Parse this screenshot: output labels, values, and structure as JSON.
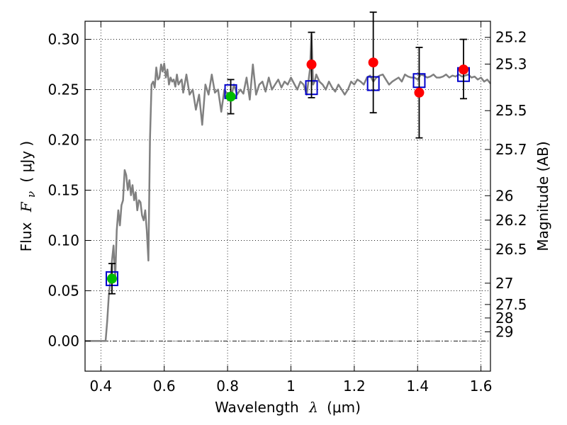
{
  "chart_data": {
    "type": "scatter",
    "xlabel_text": "Wavelength",
    "xlabel_symbol": "λ",
    "xlabel_unit": "(μm)",
    "ylabel_text": "Flux",
    "ylabel_symbol": "F",
    "ylabel_subscript": "ν",
    "ylabel_unit": "( μJy )",
    "y2label": "Magnitude (AB)",
    "xlim": [
      0.35,
      1.63
    ],
    "ylim": [
      -0.03,
      0.318
    ],
    "grid": true,
    "x_ticks": [
      0.4,
      0.6,
      0.8,
      1.0,
      1.2,
      1.4,
      1.6
    ],
    "x_tick_labels": [
      "0.4",
      "0.6",
      "0.8",
      "1",
      "1.2",
      "1.4",
      "1.6"
    ],
    "y_ticks": [
      0.0,
      0.05,
      0.1,
      0.15,
      0.2,
      0.25,
      0.3
    ],
    "y_tick_labels": [
      "0.00",
      "0.05",
      "0.10",
      "0.15",
      "0.20",
      "0.25",
      "0.30"
    ],
    "y2_ticks": [
      {
        "label": "25.2",
        "flux": 0.302
      },
      {
        "label": "25.3",
        "flux": 0.2754
      },
      {
        "label": "25.5",
        "flux": 0.2291
      },
      {
        "label": "25.7",
        "flux": 0.1905
      },
      {
        "label": "26",
        "flux": 0.1445
      },
      {
        "label": "26.2",
        "flux": 0.1202
      },
      {
        "label": "26.5",
        "flux": 0.0912
      },
      {
        "label": "27",
        "flux": 0.0575
      },
      {
        "label": "27.5",
        "flux": 0.0363
      },
      {
        "label": "28",
        "flux": 0.0229
      },
      {
        "label": "29",
        "flux": 0.0091
      }
    ],
    "series": [
      {
        "kind": "line",
        "color": "#808080",
        "x": [
          0.35,
          0.41,
          0.415,
          0.42,
          0.425,
          0.43,
          0.435,
          0.44,
          0.445,
          0.45,
          0.455,
          0.46,
          0.465,
          0.47,
          0.475,
          0.48,
          0.485,
          0.49,
          0.495,
          0.5,
          0.505,
          0.51,
          0.515,
          0.52,
          0.525,
          0.53,
          0.535,
          0.54,
          0.545,
          0.55,
          0.555,
          0.56,
          0.565,
          0.57,
          0.575,
          0.58,
          0.585,
          0.59,
          0.595,
          0.6,
          0.605,
          0.61,
          0.615,
          0.62,
          0.625,
          0.63,
          0.635,
          0.64,
          0.645,
          0.65,
          0.655,
          0.66,
          0.67,
          0.68,
          0.69,
          0.7,
          0.71,
          0.72,
          0.73,
          0.74,
          0.75,
          0.76,
          0.77,
          0.78,
          0.79,
          0.8,
          0.81,
          0.82,
          0.83,
          0.84,
          0.85,
          0.86,
          0.87,
          0.88,
          0.89,
          0.9,
          0.91,
          0.92,
          0.93,
          0.94,
          0.95,
          0.96,
          0.97,
          0.98,
          0.99,
          1.0,
          1.01,
          1.02,
          1.03,
          1.04,
          1.05,
          1.06,
          1.065,
          1.07,
          1.075,
          1.08,
          1.09,
          1.1,
          1.11,
          1.12,
          1.13,
          1.14,
          1.15,
          1.16,
          1.17,
          1.18,
          1.19,
          1.2,
          1.21,
          1.22,
          1.23,
          1.24,
          1.25,
          1.26,
          1.27,
          1.28,
          1.29,
          1.3,
          1.31,
          1.32,
          1.33,
          1.34,
          1.35,
          1.36,
          1.37,
          1.38,
          1.39,
          1.4,
          1.41,
          1.42,
          1.43,
          1.44,
          1.45,
          1.46,
          1.47,
          1.48,
          1.49,
          1.5,
          1.51,
          1.52,
          1.53,
          1.54,
          1.55,
          1.56,
          1.57,
          1.58,
          1.59,
          1.6,
          1.61,
          1.62,
          1.63
        ],
        "y": [
          0.0,
          0.0,
          0.0,
          0.02,
          0.045,
          0.06,
          0.08,
          0.095,
          0.06,
          0.11,
          0.13,
          0.115,
          0.135,
          0.14,
          0.17,
          0.165,
          0.15,
          0.16,
          0.145,
          0.155,
          0.14,
          0.148,
          0.13,
          0.14,
          0.138,
          0.125,
          0.12,
          0.13,
          0.11,
          0.08,
          0.2,
          0.255,
          0.258,
          0.252,
          0.272,
          0.26,
          0.262,
          0.275,
          0.268,
          0.276,
          0.262,
          0.27,
          0.255,
          0.262,
          0.258,
          0.26,
          0.253,
          0.265,
          0.255,
          0.258,
          0.26,
          0.247,
          0.265,
          0.245,
          0.25,
          0.23,
          0.245,
          0.215,
          0.255,
          0.245,
          0.265,
          0.247,
          0.25,
          0.228,
          0.25,
          0.245,
          0.24,
          0.255,
          0.245,
          0.25,
          0.246,
          0.262,
          0.24,
          0.275,
          0.245,
          0.255,
          0.258,
          0.248,
          0.262,
          0.25,
          0.255,
          0.26,
          0.252,
          0.258,
          0.255,
          0.262,
          0.256,
          0.25,
          0.258,
          0.255,
          0.245,
          0.27,
          0.305,
          0.255,
          0.258,
          0.265,
          0.258,
          0.255,
          0.25,
          0.258,
          0.252,
          0.248,
          0.255,
          0.25,
          0.245,
          0.25,
          0.258,
          0.255,
          0.26,
          0.258,
          0.255,
          0.262,
          0.264,
          0.258,
          0.262,
          0.264,
          0.265,
          0.26,
          0.255,
          0.258,
          0.26,
          0.262,
          0.258,
          0.265,
          0.263,
          0.262,
          0.262,
          0.26,
          0.265,
          0.264,
          0.262,
          0.263,
          0.265,
          0.262,
          0.262,
          0.263,
          0.265,
          0.262,
          0.264,
          0.263,
          0.265,
          0.263,
          0.264,
          0.265,
          0.262,
          0.263,
          0.26,
          0.262,
          0.258,
          0.26,
          0.256
        ]
      },
      {
        "kind": "open-square",
        "color": "#0000cc",
        "x": [
          0.435,
          0.81,
          1.065,
          1.26,
          1.405,
          1.545
        ],
        "y": [
          0.062,
          0.248,
          0.252,
          0.256,
          0.259,
          0.265
        ]
      },
      {
        "kind": "errorbar",
        "color": "#000000",
        "x": [
          0.435,
          0.81,
          1.065,
          1.26,
          1.405,
          1.545
        ],
        "y": [
          0.062,
          0.243,
          0.275,
          0.277,
          0.247,
          0.27
        ],
        "err_low": [
          0.015,
          0.017,
          0.033,
          0.05,
          0.045,
          0.029
        ],
        "err_high": [
          0.015,
          0.017,
          0.032,
          0.05,
          0.045,
          0.03
        ]
      },
      {
        "kind": "filled-circle",
        "color": "#00bb00",
        "x": [
          0.435,
          0.81
        ],
        "y": [
          0.062,
          0.243
        ]
      },
      {
        "kind": "filled-circle",
        "color": "#ff0000",
        "x": [
          1.065,
          1.26,
          1.405,
          1.545
        ],
        "y": [
          0.275,
          0.277,
          0.247,
          0.27
        ]
      }
    ]
  }
}
